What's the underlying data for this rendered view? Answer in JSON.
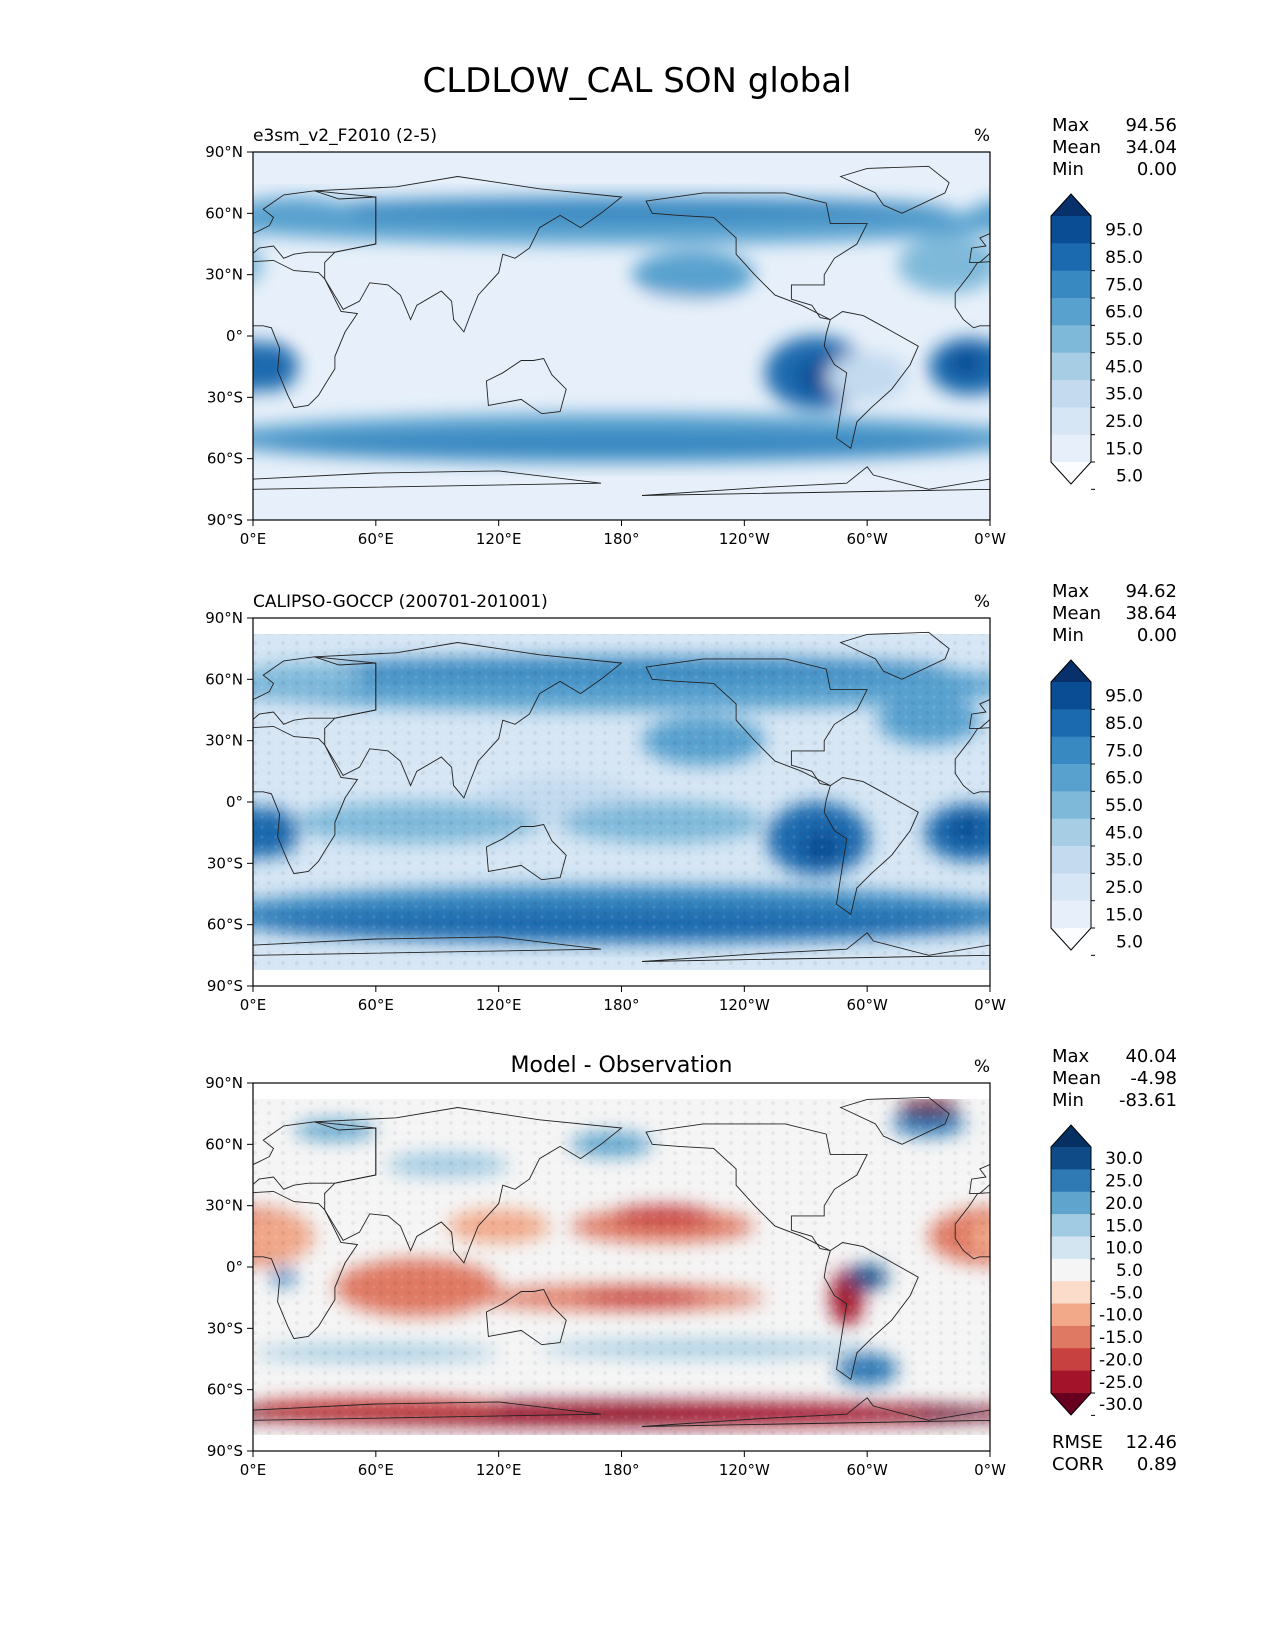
{
  "title": "CLDLOW_CAL SON global",
  "chart_data": [
    {
      "type": "heatmap",
      "label_left": "e3sm_v2_F2010 (2-5)",
      "label_center": "",
      "units": "%",
      "stats": [
        {
          "name": "Max",
          "value": "94.56"
        },
        {
          "name": "Mean",
          "value": "34.04"
        },
        {
          "name": "Min",
          "value": "0.00"
        }
      ],
      "x_ticks": [
        "0°E",
        "60°E",
        "120°E",
        "180°",
        "120°W",
        "60°W",
        "0°W"
      ],
      "y_ticks": [
        "90°N",
        "60°N",
        "30°N",
        "0°",
        "30°S",
        "60°S",
        "90°S"
      ],
      "xlim": [
        0,
        360
      ],
      "ylim": [
        -90,
        90
      ],
      "colorbar": {
        "colors": [
          "#fbfdff",
          "#e7f0fa",
          "#d6e6f4",
          "#c3daef",
          "#a6cde4",
          "#7fb9da",
          "#58a1cf",
          "#3888c1",
          "#1b6aaf",
          "#0b4d94",
          "#08306b"
        ],
        "labels": [
          "95.0",
          "85.0",
          "75.0",
          "65.0",
          "55.0",
          "45.0",
          "35.0",
          "25.0",
          "15.0",
          "5.0"
        ]
      },
      "extra_stats": []
    },
    {
      "type": "heatmap",
      "label_left": "CALIPSO-GOCCP (200701-201001)",
      "label_center": "",
      "units": "%",
      "stats": [
        {
          "name": "Max",
          "value": "94.62"
        },
        {
          "name": "Mean",
          "value": "38.64"
        },
        {
          "name": "Min",
          "value": "0.00"
        }
      ],
      "x_ticks": [
        "0°E",
        "60°E",
        "120°E",
        "180°",
        "120°W",
        "60°W",
        "0°W"
      ],
      "y_ticks": [
        "90°N",
        "60°N",
        "30°N",
        "0°",
        "30°S",
        "60°S",
        "90°S"
      ],
      "xlim": [
        0,
        360
      ],
      "ylim": [
        -90,
        90
      ],
      "colorbar": {
        "colors": [
          "#fbfdff",
          "#e7f0fa",
          "#d6e6f4",
          "#c3daef",
          "#a6cde4",
          "#7fb9da",
          "#58a1cf",
          "#3888c1",
          "#1b6aaf",
          "#0b4d94",
          "#08306b"
        ],
        "labels": [
          "95.0",
          "85.0",
          "75.0",
          "65.0",
          "55.0",
          "45.0",
          "35.0",
          "25.0",
          "15.0",
          "5.0"
        ]
      },
      "extra_stats": []
    },
    {
      "type": "heatmap",
      "label_left": "",
      "label_center": "Model - Observation",
      "units": "%",
      "stats": [
        {
          "name": "Max",
          "value": "40.04"
        },
        {
          "name": "Mean",
          "value": "-4.98"
        },
        {
          "name": "Min",
          "value": "-83.61"
        }
      ],
      "x_ticks": [
        "0°E",
        "60°E",
        "120°E",
        "180°",
        "120°W",
        "60°W",
        "0°W"
      ],
      "y_ticks": [
        "90°N",
        "60°N",
        "30°N",
        "0°",
        "30°S",
        "60°S",
        "90°S"
      ],
      "xlim": [
        0,
        360
      ],
      "ylim": [
        -90,
        90
      ],
      "colorbar": {
        "colors": [
          "#67001f",
          "#a3142a",
          "#c6413f",
          "#df7963",
          "#f1a98a",
          "#fbdccb",
          "#f5f5f5",
          "#d2e5f0",
          "#a1cbe2",
          "#5fa4cd",
          "#2f79b5",
          "#0f4b87",
          "#053061"
        ],
        "labels": [
          "30.0",
          "25.0",
          "20.0",
          "15.0",
          "10.0",
          "5.0",
          "-5.0",
          "-10.0",
          "-15.0",
          "-20.0",
          "-25.0",
          "-30.0"
        ]
      },
      "extra_stats": [
        {
          "name": "RMSE",
          "value": "12.46"
        },
        {
          "name": "CORR",
          "value": "0.89"
        }
      ]
    }
  ]
}
